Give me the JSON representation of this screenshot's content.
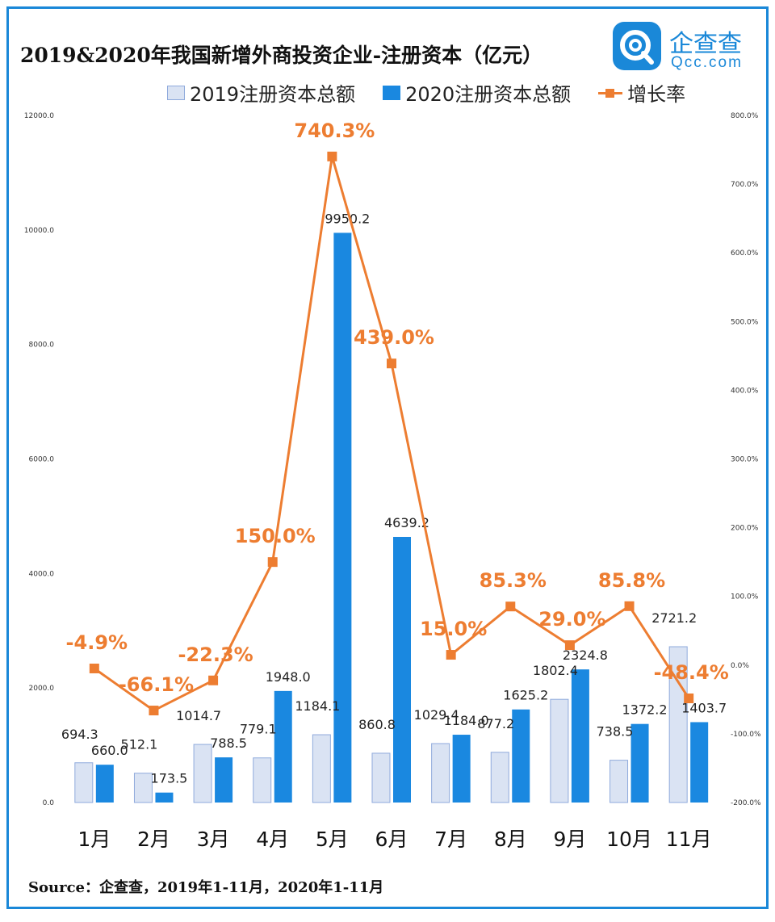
{
  "title": "2019&2020年我国新增外商投资企业-注册资本（亿元）",
  "logo": {
    "name": "企查查",
    "sub": "Qcc.com"
  },
  "source": "Source：企查查，2019年1-11月，2020年1-11月",
  "colors": {
    "bar2019_fill": "#dae3f3",
    "bar2019_stroke": "#8faadc",
    "bar2020": "#1a88e0",
    "line": "#ed7d31",
    "frame": "#1a88d8"
  },
  "chart_data": {
    "type": "bar",
    "categories": [
      "1月",
      "2月",
      "3月",
      "4月",
      "5月",
      "6月",
      "7月",
      "8月",
      "9月",
      "10月",
      "11月"
    ],
    "series": [
      {
        "name": "2019注册资本总额",
        "type": "bar",
        "axis": "left",
        "values": [
          694.3,
          512.1,
          1014.7,
          779.1,
          1184.1,
          860.8,
          1029.4,
          877.2,
          1802.4,
          738.5,
          2721.2
        ],
        "labels": [
          "694.3",
          "512.1",
          "1014.7",
          "779.1",
          "1184.1",
          "860.8",
          "1029.4",
          "877.2",
          "1802.4",
          "738.5",
          "2721.2"
        ]
      },
      {
        "name": "2020注册资本总额",
        "type": "bar",
        "axis": "right-of-pair",
        "values": [
          660.0,
          173.5,
          788.5,
          1948.0,
          9950.2,
          4639.2,
          1184.0,
          1625.2,
          2324.8,
          1372.2,
          1403.7
        ],
        "labels": [
          "660.0",
          "173.5",
          "788.5",
          "1948.0",
          "9950.2",
          "4639.2",
          "1184.0",
          "1625.2",
          "2324.8",
          "1372.2",
          "1403.7"
        ]
      },
      {
        "name": "增长率",
        "type": "line",
        "axis": "secondary",
        "values": [
          -4.9,
          -66.1,
          -22.3,
          150.0,
          740.3,
          439.0,
          15.0,
          85.3,
          29.0,
          85.8,
          -48.4
        ],
        "labels": [
          "-4.9%",
          "-66.1%",
          "-22.3%",
          "150.0%",
          "740.3%",
          "439.0%",
          "15.0%",
          "85.3%",
          "29.0%",
          "85.8%",
          "-48.4%"
        ]
      }
    ],
    "y_left": {
      "ylim": [
        0,
        12000
      ],
      "ticks": [
        "0.0",
        "2000.0",
        "4000.0",
        "6000.0",
        "8000.0",
        "10000.0",
        "12000.0"
      ],
      "tick_values": [
        0,
        2000,
        4000,
        6000,
        8000,
        10000,
        12000
      ]
    },
    "y_right": {
      "ylim": [
        -200,
        800
      ],
      "ticks": [
        "-200.0%",
        "-100.0%",
        "0.0%",
        "100.0%",
        "200.0%",
        "300.0%",
        "400.0%",
        "500.0%",
        "600.0%",
        "700.0%",
        "800.0%"
      ],
      "tick_values": [
        -200,
        -100,
        0,
        100,
        200,
        300,
        400,
        500,
        600,
        700,
        800
      ]
    },
    "grid": false,
    "legend_position": "top"
  }
}
